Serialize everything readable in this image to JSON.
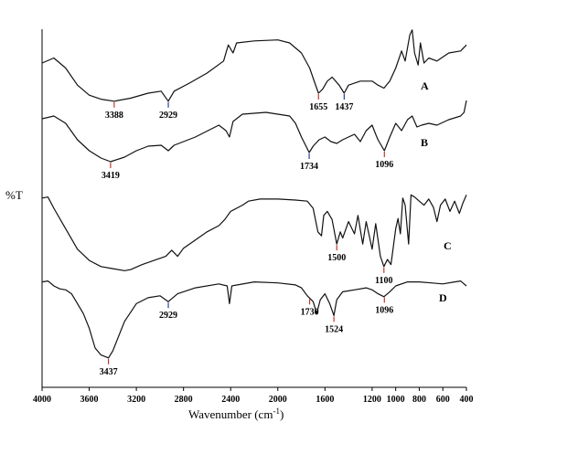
{
  "chart_data": {
    "type": "line",
    "xlabel": "Wavenumber (cm",
    "xlabel_sup": "-1",
    "xlabel_close": ")",
    "ylabel": "%T",
    "xlim": [
      4000,
      400
    ],
    "x_ticks": [
      4000,
      3600,
      3200,
      2800,
      2400,
      2000,
      1600,
      1200,
      800,
      400
    ],
    "x_tick_labels": [
      "4000",
      "3600",
      "3200",
      "2800",
      "2400",
      "2000",
      "1600",
      "1200",
      "1000",
      "800",
      "600",
      "400"
    ],
    "x_tick_values": [
      4000,
      3600,
      3200,
      2800,
      2400,
      2000,
      1600,
      1200,
      1000,
      800,
      600,
      400
    ],
    "series": [
      {
        "name": "A",
        "points": [
          [
            4000,
            60
          ],
          [
            3900,
            65
          ],
          [
            3800,
            55
          ],
          [
            3700,
            38
          ],
          [
            3600,
            28
          ],
          [
            3500,
            24
          ],
          [
            3388,
            22
          ],
          [
            3250,
            25
          ],
          [
            3100,
            30
          ],
          [
            2990,
            32
          ],
          [
            2929,
            22
          ],
          [
            2880,
            32
          ],
          [
            2750,
            40
          ],
          [
            2600,
            50
          ],
          [
            2460,
            62
          ],
          [
            2420,
            78
          ],
          [
            2380,
            70
          ],
          [
            2350,
            80
          ],
          [
            2200,
            82
          ],
          [
            2000,
            83
          ],
          [
            1900,
            80
          ],
          [
            1800,
            70
          ],
          [
            1730,
            55
          ],
          [
            1700,
            45
          ],
          [
            1655,
            30
          ],
          [
            1620,
            34
          ],
          [
            1580,
            42
          ],
          [
            1540,
            46
          ],
          [
            1480,
            38
          ],
          [
            1437,
            30
          ],
          [
            1400,
            38
          ],
          [
            1300,
            42
          ],
          [
            1200,
            42
          ],
          [
            1150,
            38
          ],
          [
            1100,
            35
          ],
          [
            1050,
            42
          ],
          [
            1000,
            55
          ],
          [
            950,
            72
          ],
          [
            920,
            62
          ],
          [
            880,
            88
          ],
          [
            860,
            93
          ],
          [
            840,
            70
          ],
          [
            810,
            58
          ],
          [
            790,
            80
          ],
          [
            760,
            60
          ],
          [
            720,
            65
          ],
          [
            650,
            62
          ],
          [
            550,
            70
          ],
          [
            450,
            72
          ],
          [
            400,
            78
          ]
        ]
      },
      {
        "name": "B",
        "points": [
          [
            4000,
            75
          ],
          [
            3900,
            78
          ],
          [
            3800,
            70
          ],
          [
            3700,
            52
          ],
          [
            3600,
            40
          ],
          [
            3500,
            32
          ],
          [
            3419,
            28
          ],
          [
            3300,
            33
          ],
          [
            3200,
            40
          ],
          [
            3100,
            45
          ],
          [
            2990,
            46
          ],
          [
            2929,
            40
          ],
          [
            2880,
            46
          ],
          [
            2700,
            55
          ],
          [
            2500,
            68
          ],
          [
            2440,
            62
          ],
          [
            2410,
            55
          ],
          [
            2380,
            72
          ],
          [
            2300,
            80
          ],
          [
            2100,
            82
          ],
          [
            1900,
            78
          ],
          [
            1850,
            70
          ],
          [
            1800,
            55
          ],
          [
            1734,
            38
          ],
          [
            1700,
            45
          ],
          [
            1650,
            52
          ],
          [
            1600,
            55
          ],
          [
            1550,
            50
          ],
          [
            1500,
            48
          ],
          [
            1450,
            52
          ],
          [
            1400,
            55
          ],
          [
            1350,
            58
          ],
          [
            1300,
            50
          ],
          [
            1250,
            62
          ],
          [
            1200,
            68
          ],
          [
            1170,
            58
          ],
          [
            1150,
            52
          ],
          [
            1096,
            40
          ],
          [
            1050,
            55
          ],
          [
            1000,
            70
          ],
          [
            950,
            62
          ],
          [
            900,
            74
          ],
          [
            860,
            78
          ],
          [
            820,
            66
          ],
          [
            780,
            68
          ],
          [
            720,
            70
          ],
          [
            650,
            68
          ],
          [
            550,
            74
          ],
          [
            450,
            78
          ],
          [
            420,
            82
          ],
          [
            400,
            95
          ]
        ]
      },
      {
        "name": "C",
        "points": [
          [
            4000,
            85
          ],
          [
            3950,
            86
          ],
          [
            3900,
            75
          ],
          [
            3800,
            55
          ],
          [
            3700,
            35
          ],
          [
            3600,
            24
          ],
          [
            3500,
            18
          ],
          [
            3400,
            16
          ],
          [
            3300,
            14
          ],
          [
            3250,
            15
          ],
          [
            3150,
            20
          ],
          [
            3050,
            24
          ],
          [
            2950,
            28
          ],
          [
            2900,
            34
          ],
          [
            2850,
            28
          ],
          [
            2800,
            36
          ],
          [
            2700,
            44
          ],
          [
            2600,
            52
          ],
          [
            2500,
            58
          ],
          [
            2450,
            64
          ],
          [
            2400,
            72
          ],
          [
            2300,
            78
          ],
          [
            2250,
            82
          ],
          [
            2150,
            84
          ],
          [
            2000,
            84
          ],
          [
            1850,
            83
          ],
          [
            1750,
            82
          ],
          [
            1700,
            75
          ],
          [
            1660,
            52
          ],
          [
            1630,
            48
          ],
          [
            1610,
            68
          ],
          [
            1580,
            72
          ],
          [
            1540,
            64
          ],
          [
            1500,
            40
          ],
          [
            1470,
            52
          ],
          [
            1450,
            46
          ],
          [
            1400,
            62
          ],
          [
            1350,
            50
          ],
          [
            1320,
            68
          ],
          [
            1280,
            40
          ],
          [
            1250,
            62
          ],
          [
            1200,
            35
          ],
          [
            1170,
            60
          ],
          [
            1130,
            28
          ],
          [
            1100,
            18
          ],
          [
            1070,
            25
          ],
          [
            1040,
            20
          ],
          [
            1000,
            55
          ],
          [
            980,
            65
          ],
          [
            960,
            50
          ],
          [
            940,
            85
          ],
          [
            920,
            78
          ],
          [
            890,
            40
          ],
          [
            870,
            88
          ],
          [
            840,
            86
          ],
          [
            800,
            82
          ],
          [
            760,
            78
          ],
          [
            720,
            84
          ],
          [
            680,
            76
          ],
          [
            650,
            62
          ],
          [
            620,
            78
          ],
          [
            580,
            84
          ],
          [
            540,
            72
          ],
          [
            500,
            82
          ],
          [
            460,
            70
          ],
          [
            430,
            80
          ],
          [
            400,
            88
          ]
        ]
      },
      {
        "name": "D",
        "points": [
          [
            4000,
            92
          ],
          [
            3950,
            93
          ],
          [
            3900,
            88
          ],
          [
            3850,
            85
          ],
          [
            3800,
            84
          ],
          [
            3750,
            80
          ],
          [
            3700,
            70
          ],
          [
            3650,
            60
          ],
          [
            3600,
            45
          ],
          [
            3550,
            25
          ],
          [
            3500,
            18
          ],
          [
            3437,
            15
          ],
          [
            3400,
            22
          ],
          [
            3300,
            52
          ],
          [
            3200,
            70
          ],
          [
            3100,
            76
          ],
          [
            3000,
            78
          ],
          [
            2929,
            72
          ],
          [
            2850,
            80
          ],
          [
            2700,
            86
          ],
          [
            2500,
            90
          ],
          [
            2430,
            88
          ],
          [
            2410,
            70
          ],
          [
            2390,
            88
          ],
          [
            2200,
            92
          ],
          [
            2000,
            91
          ],
          [
            1850,
            89
          ],
          [
            1800,
            86
          ],
          [
            1750,
            78
          ],
          [
            1700,
            72
          ],
          [
            1670,
            60
          ],
          [
            1640,
            74
          ],
          [
            1600,
            80
          ],
          [
            1560,
            70
          ],
          [
            1524,
            58
          ],
          [
            1500,
            74
          ],
          [
            1450,
            82
          ],
          [
            1350,
            84
          ],
          [
            1250,
            86
          ],
          [
            1200,
            84
          ],
          [
            1150,
            80
          ],
          [
            1100,
            77
          ],
          [
            1050,
            82
          ],
          [
            1000,
            88
          ],
          [
            900,
            92
          ],
          [
            800,
            92
          ],
          [
            700,
            91
          ],
          [
            600,
            90
          ],
          [
            500,
            92
          ],
          [
            450,
            93
          ],
          [
            420,
            90
          ],
          [
            400,
            88
          ]
        ]
      }
    ],
    "peak_labels": [
      {
        "series": "A",
        "x": 3388,
        "text": "3388",
        "tick_color": "#c0392b"
      },
      {
        "series": "A",
        "x": 2929,
        "text": "2929",
        "tick_color": "#2c3e9e"
      },
      {
        "series": "A",
        "x": 1655,
        "text": "1655",
        "tick_color": "#c0392b"
      },
      {
        "series": "A",
        "x": 1437,
        "text": "1437",
        "tick_color": "#2c3e9e"
      },
      {
        "series": "B",
        "x": 3419,
        "text": "3419",
        "tick_color": "#c0392b"
      },
      {
        "series": "B",
        "x": 1734,
        "text": "1734",
        "tick_color": "#2c3e9e"
      },
      {
        "series": "B",
        "x": 1096,
        "text": "1096",
        "tick_color": "#c0392b"
      },
      {
        "series": "C",
        "x": 1500,
        "text": "1500",
        "tick_color": "#c0392b"
      },
      {
        "series": "C",
        "x": 1100,
        "text": "1100",
        "tick_color": "#c0392b"
      },
      {
        "series": "D",
        "x": 3437,
        "text": "3437",
        "tick_color": "#c0392b"
      },
      {
        "series": "D",
        "x": 2929,
        "text": "2929",
        "tick_color": "#2c3e9e"
      },
      {
        "series": "D",
        "x": 1730,
        "text": "1730",
        "tick_color": "#c0392b"
      },
      {
        "series": "D",
        "x": 1524,
        "text": "1524",
        "tick_color": "#c0392b"
      },
      {
        "series": "D",
        "x": 1096,
        "text": "1096",
        "tick_color": "#c0392b"
      }
    ]
  }
}
